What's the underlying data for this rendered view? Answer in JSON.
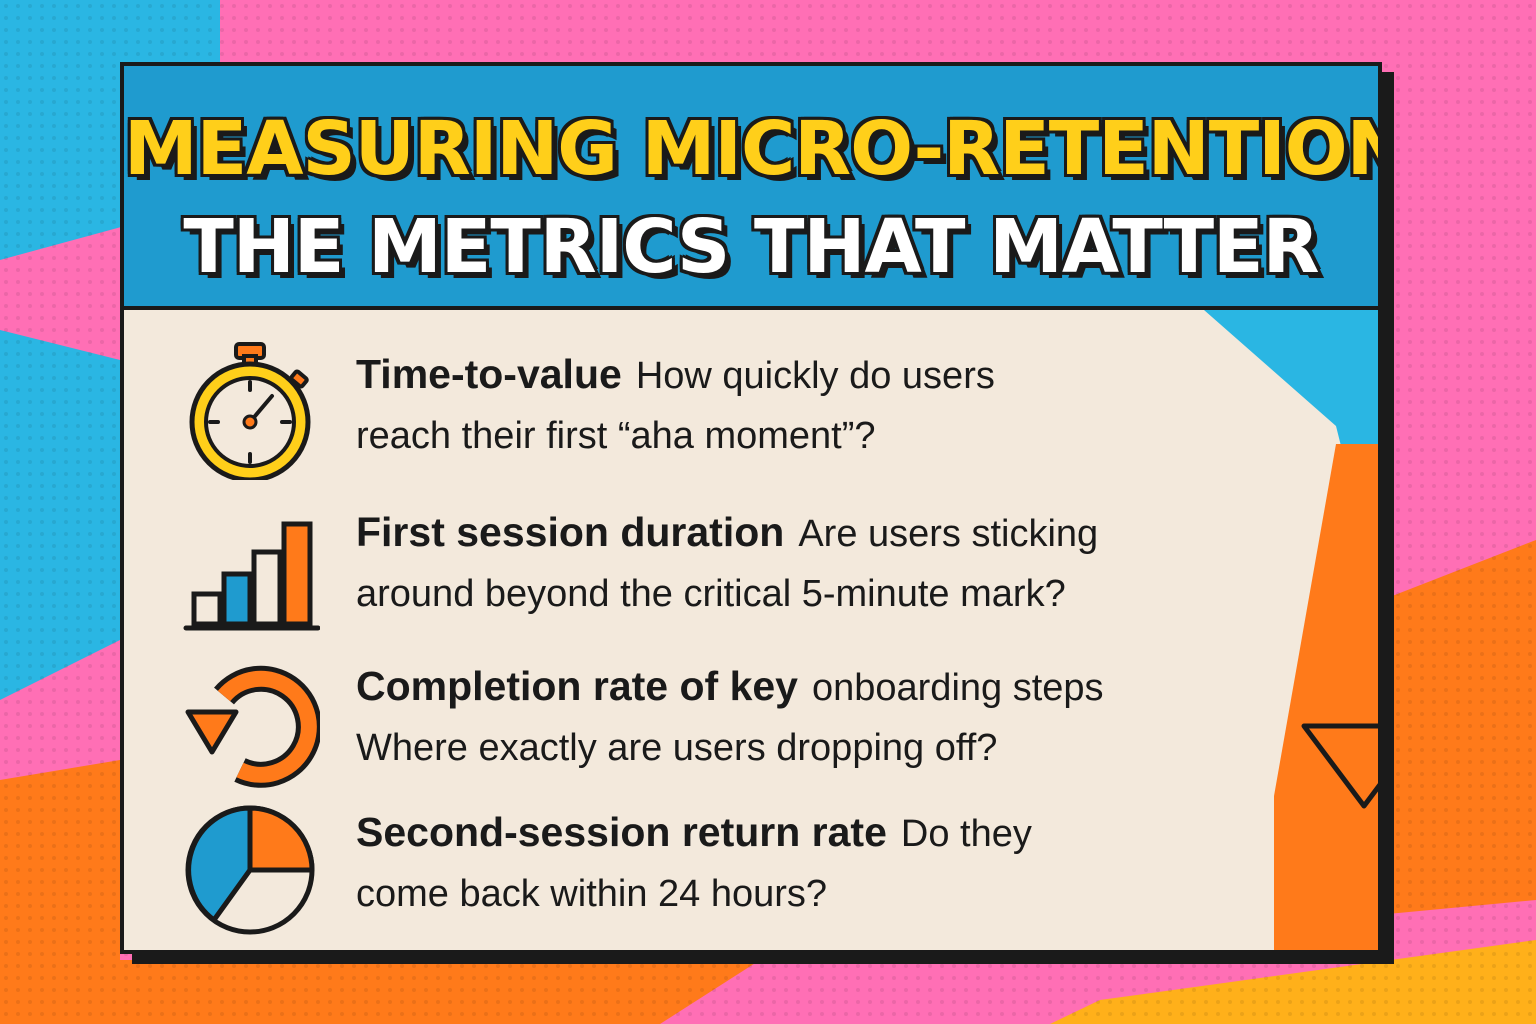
{
  "colors": {
    "pink": "#ff6fb5",
    "cyan": "#2ab6e3",
    "orange": "#ff7a1a",
    "yellow": "#ffcf1a",
    "header_blue": "#1f9bcf",
    "card": "#f3e9dc",
    "ink": "#1a1a1a"
  },
  "header": {
    "title_line1": "MEASURING MICRO-RETENTION:",
    "title_line2": "THE METRICS THAT MATTER"
  },
  "metrics": [
    {
      "icon": "stopwatch-icon",
      "title": "Time-to-value",
      "desc_line1": "How quickly do users",
      "desc_line2": "reach their first “aha moment”?"
    },
    {
      "icon": "bar-chart-icon",
      "title": "First session duration",
      "desc_line1": "Are users sticking",
      "desc_line2": "around beyond the critical 5-minute mark?"
    },
    {
      "icon": "refresh-arrow-icon",
      "title": "Completion rate of key",
      "desc_line1": "onboarding steps",
      "desc_line2": "Where exactly are users dropping off?"
    },
    {
      "icon": "pie-chart-icon",
      "title": "Second-session return rate",
      "desc_line1": "Do they",
      "desc_line2": "come back within 24 hours?"
    }
  ]
}
